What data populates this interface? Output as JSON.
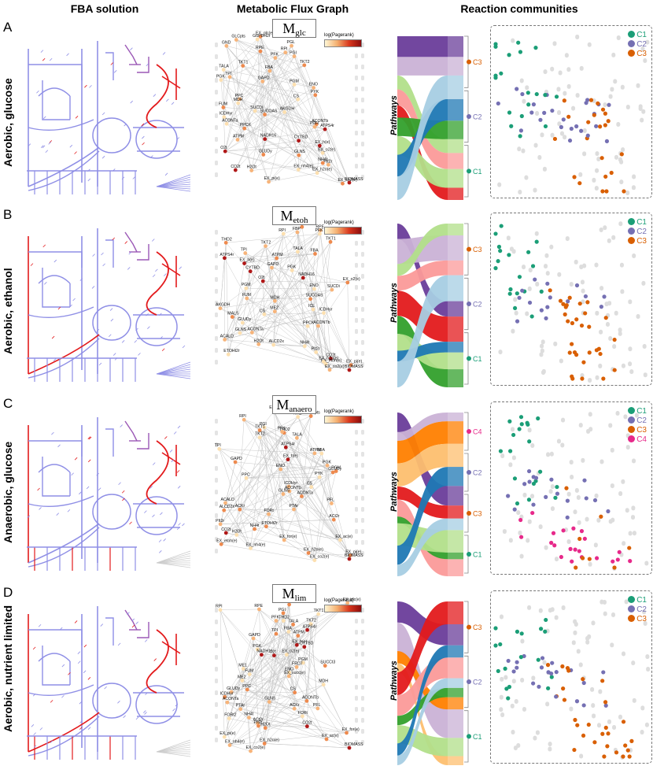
{
  "headers": {
    "fba": "FBA solution",
    "mfg": "Metabolic Flux Graph",
    "communities": "Reaction communities"
  },
  "axis_label": "Pathways",
  "colorbar_label": "log(Pagerank)",
  "colors": {
    "C1": "#1b9e77",
    "C2": "#7570b3",
    "C3": "#d95f02",
    "C4": "#e7298a",
    "flux_blue": "#8f8fe6",
    "flux_red": "#e31a1c",
    "inactive": "#dddddd"
  },
  "rows": [
    {
      "letter": "A",
      "condition": "Aerobic, glucose",
      "graph_symbol": "M",
      "graph_subscript": "glc",
      "communities": [
        "C1",
        "C2",
        "C3"
      ],
      "community_brackets": [
        "C3",
        "C2",
        "C1"
      ],
      "node_labels": [
        "EX_glc(e)",
        "GLCpts",
        "G6PDH2r",
        "PGL",
        "GND",
        "RPE",
        "RPI",
        "PGI",
        "PFK",
        "TKT2",
        "TKT1",
        "TALA",
        "FBA",
        "TPI",
        "GAPD",
        "PGK",
        "PGM",
        "ENO",
        "PYK",
        "PPC",
        "CS",
        "MDH",
        "FUM",
        "SUCDi",
        "SUCOAS",
        "AKGDH",
        "ICDHyr",
        "ACONTb",
        "ACONTa",
        "PPCK",
        "PDH",
        "ATPS4r",
        "ATPM",
        "CYTBD",
        "NADH16",
        "EX_h(e)",
        "O2t",
        "EX_o2(e)",
        "GLUDy",
        "GLNS",
        "PIt2r",
        "NH4t",
        "CO2t",
        "H2Ot",
        "EX_nh4(e)",
        "EX_h2o(e)",
        "EX_pi(e)",
        "EX_co2(e)",
        "BIOMASS"
      ]
    },
    {
      "letter": "B",
      "condition": "Aerobic, ethanol",
      "graph_symbol": "M",
      "graph_subscript": "etoh",
      "communities": [
        "C1",
        "C2",
        "C3"
      ],
      "community_brackets": [
        "C3",
        "C2",
        "C1"
      ],
      "node_labels": [
        "PGI",
        "RPE",
        "RPI",
        "FBP",
        "PFK",
        "TKT1",
        "THD2",
        "TKT2",
        "TALA",
        "TPI",
        "FBA",
        "ATPS4r",
        "ATPM",
        "GAPD",
        "EX_h(e)",
        "CYTBD",
        "PGK",
        "NADH16",
        "O2t",
        "EX_o2(e)",
        "PGM",
        "SUCDi",
        "ENO",
        "FUM",
        "SUCOAS",
        "MDH",
        "AKGDH",
        "ME2",
        "ICL",
        "ICDHyr",
        "CS",
        "MALS",
        "GLUDy",
        "ACONTb",
        "PPCK",
        "ACONTa",
        "GLNS",
        "ACALD",
        "ALCD2x",
        "NH4t",
        "H2Ot",
        "ETOHt2r",
        "PIt2r",
        "CO2t",
        "EX_etoh(e)",
        "EX_h2o(e)",
        "EX_pi(e)",
        "EX_co2(e)",
        "BIOMASS"
      ]
    },
    {
      "letter": "C",
      "condition": "Anaerobic, glucose",
      "graph_symbol": "M",
      "graph_subscript": "anaero",
      "communities": [
        "C1",
        "C2",
        "C3",
        "C4"
      ],
      "community_brackets": [
        "C4",
        "C2",
        "C3",
        "C1"
      ],
      "node_labels": [
        "EX_glc(e)",
        "GLCpts",
        "RPE",
        "RPI",
        "PGI",
        "TKT1",
        "THD2",
        "PFK",
        "TKT2",
        "TALA",
        "ATPS4r",
        "TPI",
        "FBA",
        "ATPM",
        "EX_h(e)",
        "GAPD",
        "PGK",
        "PGM",
        "ENO",
        "GLUDy",
        "PYK",
        "PPC",
        "CS",
        "ICDHyr",
        "ACONTb",
        "ACONTa",
        "GLNS",
        "PFL",
        "ACALD",
        "ALCD2x",
        "PTAr",
        "ACKr",
        "FORt",
        "ACt2r",
        "ETOHt2r",
        "PIt2r",
        "NH4t",
        "CO2t",
        "H2Ot",
        "EX_for(e)",
        "EX_ac(e)",
        "EX_etoh(e)",
        "EX_nh4(e)",
        "EX_pi(e)",
        "EX_h2o(e)",
        "EX_co2(e)",
        "BIOMASS"
      ]
    },
    {
      "letter": "D",
      "condition": "Aerobic, nutrient limited",
      "graph_symbol": "M",
      "graph_subscript": "lim",
      "communities": [
        "C1",
        "C2",
        "C3"
      ],
      "community_brackets": [
        "C3",
        "C2",
        "C1"
      ],
      "node_labels": [
        "EX_glc(e)",
        "GLCpts",
        "RPE",
        "RPI",
        "PGI",
        "TKT1",
        "THD2",
        "PFK",
        "TKT2",
        "TALA",
        "ATPS4r",
        "TPI",
        "FBA",
        "ATPM",
        "GAPD",
        "EX_h(e)",
        "CYTBD",
        "PGK",
        "NADH16",
        "O2t",
        "EX_o2(e)",
        "PGM",
        "FRD7",
        "SUCCt3",
        "ENO",
        "ME1",
        "FUM",
        "EX_succ(e)",
        "ME2",
        "MDH",
        "PPC",
        "CS",
        "GLUDy",
        "ICDHyr",
        "ACONTb",
        "GLNS",
        "ACONTa",
        "PFL",
        "PTAr",
        "ACKr",
        "NH4t",
        "FORt",
        "FORt2",
        "ACt2r",
        "PIt2r",
        "CO2t",
        "H2Ot",
        "EX_for(e)",
        "EX_ac(e)",
        "EX_pi(e)",
        "EX_nh4(e)",
        "EX_h2o(e)",
        "EX_co2(e)",
        "BIOMASS"
      ]
    }
  ]
}
